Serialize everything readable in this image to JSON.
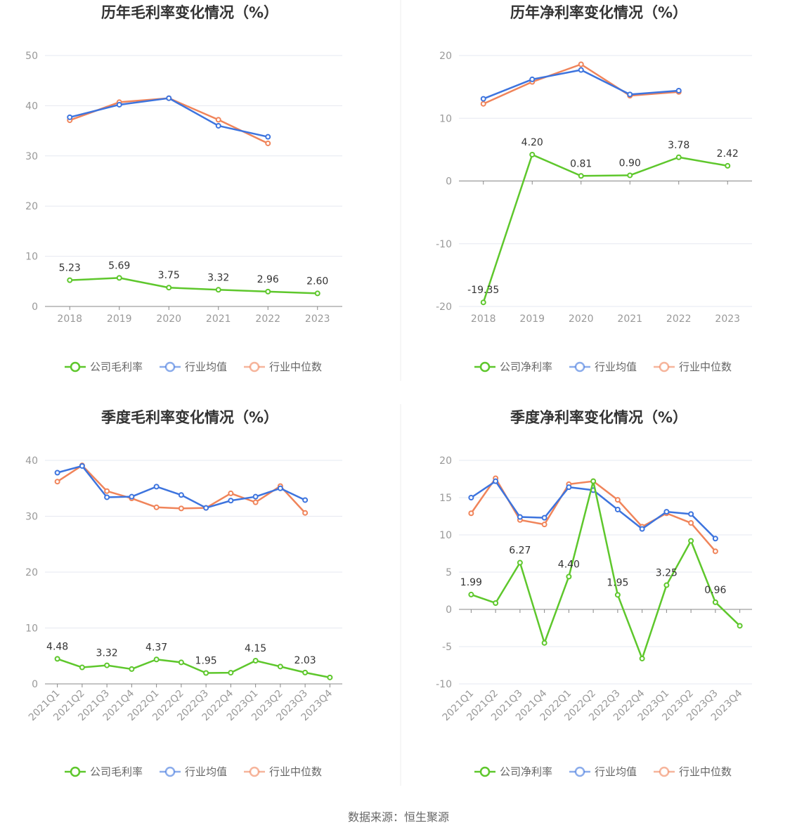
{
  "source_note": "数据来源：恒生聚源",
  "colors": {
    "company": "#5ec72c",
    "avg": "#3d74de",
    "median": "#f0845a",
    "grid": "#e6e8f0",
    "axis": "#999999"
  },
  "chart_data": [
    {
      "type": "line",
      "title": "历年毛利率变化情况（%）",
      "categories": [
        "2018",
        "2019",
        "2020",
        "2021",
        "2022",
        "2023"
      ],
      "ylim": [
        0,
        50
      ],
      "yticks": [
        0,
        10,
        20,
        30,
        40,
        50
      ],
      "series": [
        {
          "name": "公司毛利率",
          "key": "company",
          "values": [
            5.23,
            5.69,
            3.75,
            3.32,
            2.96,
            2.6
          ],
          "labels": [
            "5.23",
            "5.69",
            "3.75",
            "3.32",
            "2.96",
            "2.60"
          ]
        },
        {
          "name": "行业均值",
          "key": "avg",
          "values": [
            37.7,
            40.2,
            41.5,
            36.0,
            33.8,
            null
          ]
        },
        {
          "name": "行业中位数",
          "key": "median",
          "values": [
            37.1,
            40.7,
            41.5,
            37.2,
            32.5,
            null
          ]
        }
      ],
      "legend": "bottom"
    },
    {
      "type": "line",
      "title": "历年净利率变化情况（%）",
      "categories": [
        "2018",
        "2019",
        "2020",
        "2021",
        "2022",
        "2023"
      ],
      "ylim": [
        -20,
        20
      ],
      "yticks": [
        -20,
        -10,
        0,
        10,
        20
      ],
      "series": [
        {
          "name": "公司净利率",
          "key": "company",
          "values": [
            -19.35,
            4.2,
            0.81,
            0.9,
            3.78,
            2.42
          ],
          "labels": [
            "-19.35",
            "4.20",
            "0.81",
            "0.90",
            "3.78",
            "2.42"
          ]
        },
        {
          "name": "行业均值",
          "key": "avg",
          "values": [
            13.1,
            16.2,
            17.7,
            13.8,
            14.4,
            null
          ]
        },
        {
          "name": "行业中位数",
          "key": "median",
          "values": [
            12.3,
            15.8,
            18.6,
            13.6,
            14.2,
            null
          ]
        }
      ],
      "legend": "bottom"
    },
    {
      "type": "line",
      "title": "季度毛利率变化情况（%）",
      "categories": [
        "2021Q1",
        "2021Q2",
        "2021Q3",
        "2021Q4",
        "2022Q1",
        "2022Q2",
        "2022Q3",
        "2022Q4",
        "2023Q1",
        "2023Q2",
        "2023Q3",
        "2023Q4"
      ],
      "ylim": [
        0,
        40
      ],
      "yticks": [
        0,
        10,
        20,
        30,
        40
      ],
      "series": [
        {
          "name": "公司毛利率",
          "key": "company",
          "values": [
            4.48,
            2.95,
            3.32,
            2.65,
            4.37,
            3.85,
            1.95,
            2.0,
            4.15,
            3.1,
            2.03,
            1.15
          ],
          "labels": [
            "4.48",
            "",
            "3.32",
            "",
            "4.37",
            "",
            "1.95",
            "",
            "4.15",
            "",
            "2.03",
            ""
          ]
        },
        {
          "name": "行业均值",
          "key": "avg",
          "values": [
            37.8,
            39.0,
            33.4,
            33.5,
            35.3,
            33.8,
            31.5,
            32.8,
            33.5,
            35.0,
            32.9,
            null
          ]
        },
        {
          "name": "行业中位数",
          "key": "median",
          "values": [
            36.2,
            39.1,
            34.5,
            33.2,
            31.6,
            31.4,
            31.5,
            34.1,
            32.5,
            35.4,
            30.6,
            null
          ]
        }
      ],
      "legend": "bottom"
    },
    {
      "type": "line",
      "title": "季度净利率变化情况（%）",
      "categories": [
        "2021Q1",
        "2021Q2",
        "2021Q3",
        "2021Q4",
        "2022Q1",
        "2022Q2",
        "2022Q3",
        "2022Q4",
        "2023Q1",
        "2023Q2",
        "2023Q3",
        "2023Q4"
      ],
      "ylim": [
        -10,
        20
      ],
      "yticks": [
        -10,
        -5,
        0,
        5,
        10,
        15,
        20
      ],
      "series": [
        {
          "name": "公司净利率",
          "key": "company",
          "values": [
            1.99,
            0.85,
            6.27,
            -4.5,
            4.4,
            17.2,
            1.95,
            -6.6,
            3.25,
            9.2,
            0.96,
            -2.2
          ],
          "labels": [
            "1.99",
            "",
            "6.27",
            "",
            "4.40",
            "",
            "1.95",
            "",
            "3.25",
            "",
            "0.96",
            ""
          ]
        },
        {
          "name": "行业均值",
          "key": "avg",
          "values": [
            15.0,
            17.2,
            12.4,
            12.3,
            16.4,
            16.0,
            13.4,
            10.8,
            13.1,
            12.8,
            9.5,
            null
          ]
        },
        {
          "name": "行业中位数",
          "key": "median",
          "values": [
            12.9,
            17.6,
            12.0,
            11.4,
            16.8,
            17.2,
            14.7,
            11.1,
            12.9,
            11.6,
            7.8,
            null
          ]
        }
      ],
      "legend": "bottom"
    }
  ]
}
